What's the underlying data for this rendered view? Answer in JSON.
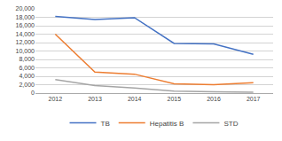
{
  "chart_data": {
    "type": "line",
    "x": [
      2012,
      2013,
      2014,
      2015,
      2016,
      2017
    ],
    "xlim": [
      2011.5,
      2017.5
    ],
    "xticks": [
      2012,
      2013,
      2014,
      2015,
      2016,
      2017
    ],
    "ylim": [
      0,
      20000
    ],
    "yticks": [
      0,
      {
        "value": 2000,
        "label": "2,000"
      },
      {
        "value": 4000,
        "label": "4,000"
      },
      {
        "value": 6000,
        "label": "6,000"
      },
      {
        "value": 8000,
        "label": "8,000"
      },
      {
        "value": 10000,
        "label": "10,000"
      },
      {
        "value": 12000,
        "label": "12,000"
      },
      {
        "value": 14000,
        "label": "14,000"
      },
      {
        "value": 16000,
        "label": "16,000"
      },
      {
        "value": 18000,
        "label": "18,000"
      },
      {
        "value": 20000,
        "label": "20,000"
      }
    ],
    "series": [
      {
        "name": "TB",
        "color": "#4472C4",
        "values": [
          18200,
          17500,
          17900,
          11800,
          11700,
          9200
        ]
      },
      {
        "name": "Hepatitis B",
        "color": "#ED7D31",
        "values": [
          14000,
          5000,
          4500,
          2200,
          2000,
          2500
        ]
      },
      {
        "name": "STD",
        "color": "#A5A5A5",
        "values": [
          3200,
          1800,
          1200,
          500,
          300,
          200
        ]
      }
    ],
    "grid": "y",
    "legend": "bottom"
  }
}
